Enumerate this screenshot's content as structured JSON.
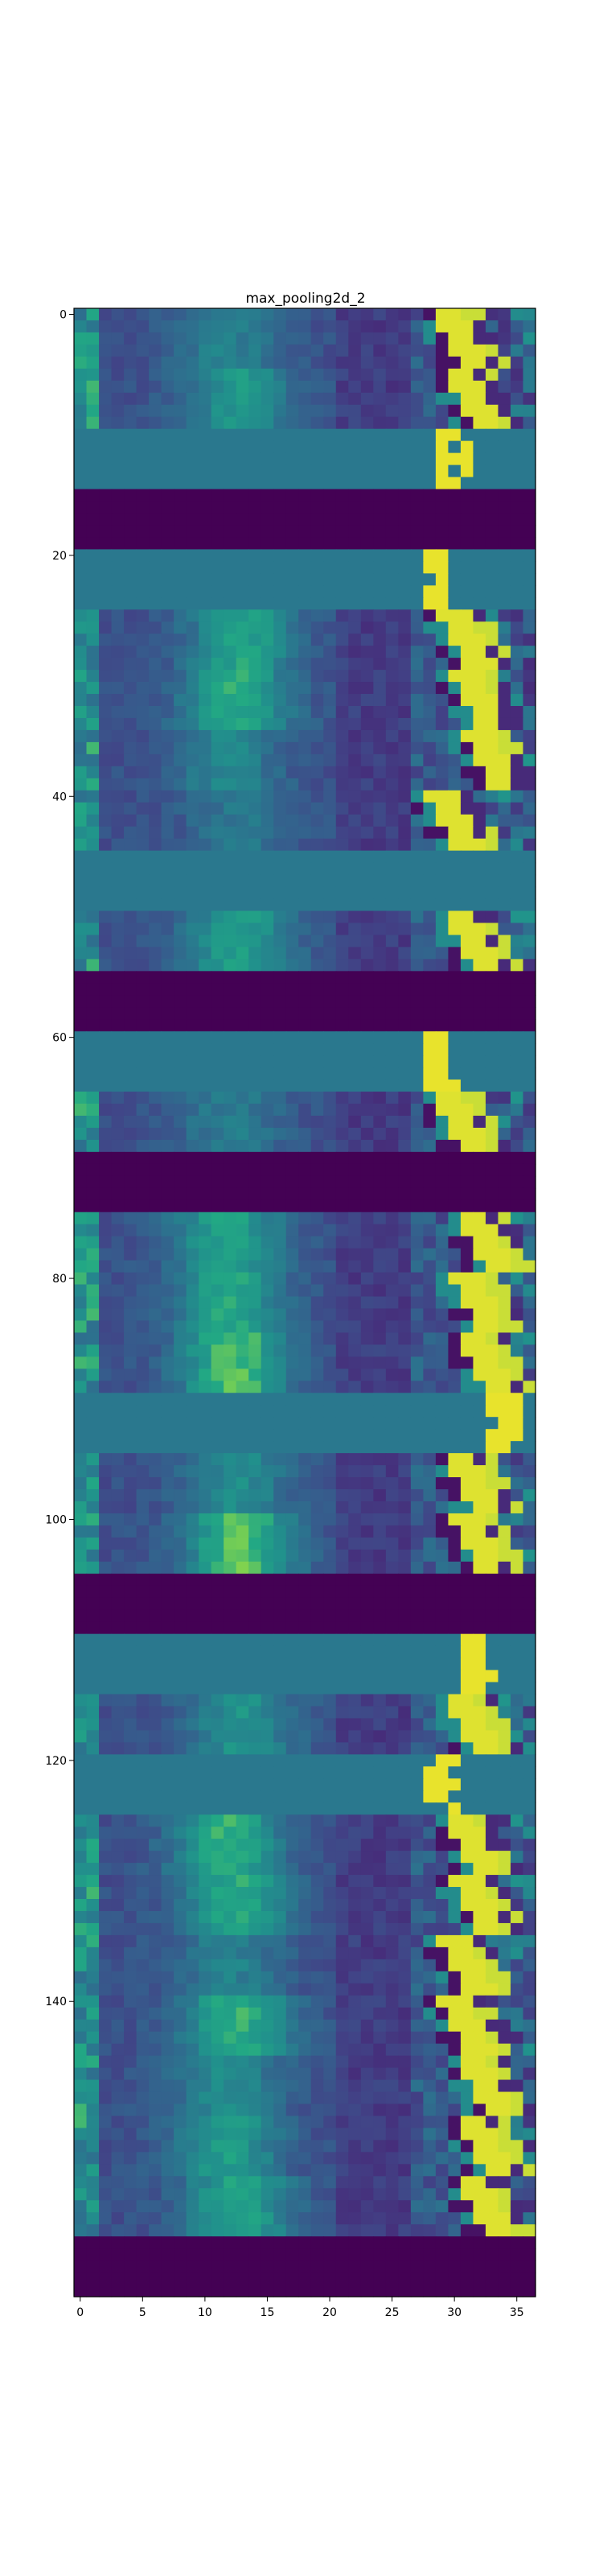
{
  "chart_data": {
    "type": "heatmap",
    "title": "max_pooling2d_2",
    "xlabel": "",
    "ylabel": "",
    "x_ticks": [
      0,
      5,
      10,
      15,
      20,
      25,
      30,
      35
    ],
    "y_ticks": [
      0,
      20,
      40,
      60,
      80,
      100,
      120,
      140
    ],
    "xlim": [
      -0.5,
      36.5
    ],
    "ylim": [
      164.5,
      -0.5
    ],
    "colormap": "viridis",
    "grid": false,
    "n_cols": 37,
    "n_rows": 165,
    "band_height": 5,
    "bands": [
      {
        "kind": "texture",
        "intensity": 0.45,
        "edge": 29.5
      },
      {
        "kind": "texture",
        "intensity": 0.65,
        "edge": 30.5
      },
      {
        "kind": "flat",
        "edge": 28.5
      },
      {
        "kind": "dark"
      },
      {
        "kind": "flat",
        "edge": 27.5
      },
      {
        "kind": "texture",
        "intensity": 0.75,
        "edge": 30
      },
      {
        "kind": "texture",
        "intensity": 0.8,
        "edge": 31
      },
      {
        "kind": "texture",
        "intensity": 0.5,
        "edge": 32
      },
      {
        "kind": "texture",
        "intensity": 0.35,
        "edge": 29
      },
      {
        "kind": "flat",
        "edge": 99
      },
      {
        "kind": "texture",
        "intensity": 0.7,
        "edge": 30.5
      },
      {
        "kind": "dark"
      },
      {
        "kind": "flat",
        "edge": 28
      },
      {
        "kind": "texture",
        "intensity": 0.4,
        "edge": 29.5
      },
      {
        "kind": "dark"
      },
      {
        "kind": "texture",
        "intensity": 0.75,
        "edge": 31.5
      },
      {
        "kind": "texture",
        "intensity": 0.8,
        "edge": 31
      },
      {
        "kind": "texture",
        "intensity": 0.95,
        "edge": 31.5
      },
      {
        "kind": "flat",
        "edge": 33
      },
      {
        "kind": "texture",
        "intensity": 0.55,
        "edge": 30.5
      },
      {
        "kind": "texture",
        "intensity": 0.95,
        "edge": 31
      },
      {
        "kind": "dark"
      },
      {
        "kind": "flat",
        "edge": 30.5
      },
      {
        "kind": "texture",
        "intensity": 0.6,
        "edge": 30.5
      },
      {
        "kind": "flat",
        "edge": 28
      },
      {
        "kind": "texture",
        "intensity": 0.85,
        "edge": 30.5
      },
      {
        "kind": "texture",
        "intensity": 0.8,
        "edge": 31
      },
      {
        "kind": "texture",
        "intensity": 0.45,
        "edge": 30
      },
      {
        "kind": "texture",
        "intensity": 0.85,
        "edge": 30
      },
      {
        "kind": "texture",
        "intensity": 0.55,
        "edge": 31.5
      },
      {
        "kind": "texture",
        "intensity": 0.7,
        "edge": 31.5
      },
      {
        "kind": "texture",
        "intensity": 0.75,
        "edge": 31.5
      },
      {
        "kind": "dark"
      }
    ]
  }
}
